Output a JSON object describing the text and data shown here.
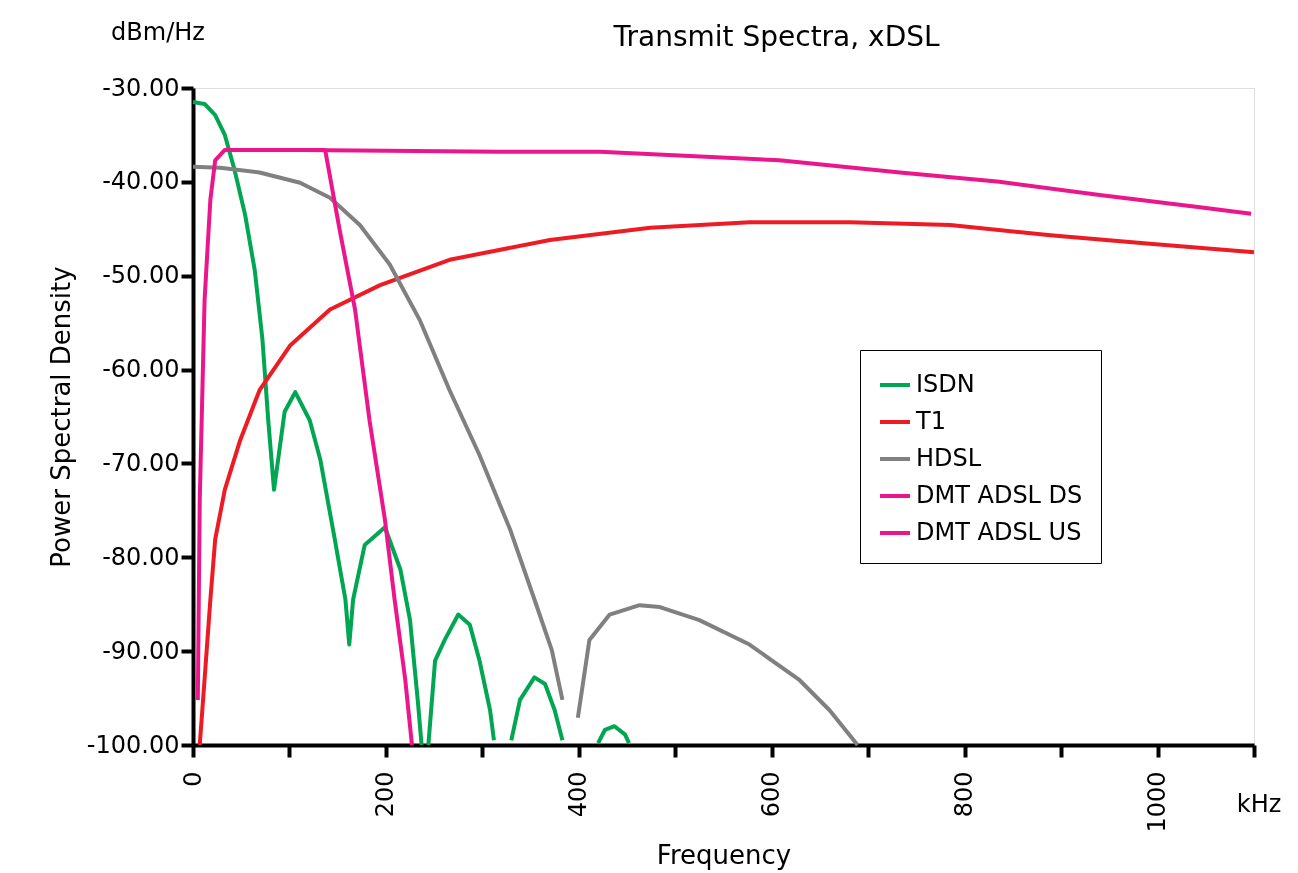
{
  "chart_data": {
    "type": "line",
    "title": "Transmit Spectra, xDSL",
    "xlabel": "Frequency",
    "ylabel": "Power Spectral Density",
    "annotations": [
      "dBm/Hz",
      "kHz"
    ],
    "xlim": [
      0,
      1100
    ],
    "ylim": [
      -100,
      -30
    ],
    "xticks": [
      0,
      {
        "value": 100,
        "label": null
      },
      200,
      {
        "value": 300,
        "label": null
      },
      400,
      {
        "value": 500,
        "label": null
      },
      600,
      {
        "value": 700,
        "label": null
      },
      800,
      {
        "value": 900,
        "label": null
      },
      1000,
      {
        "value": 1100,
        "label": null
      }
    ],
    "yticks": [
      {
        "value": -100,
        "label": "-100.00"
      },
      {
        "value": -90,
        "label": "-90.00"
      },
      {
        "value": -80,
        "label": "-80.00"
      },
      {
        "value": -70,
        "label": "-70.00"
      },
      {
        "value": -60,
        "label": "-60.00"
      },
      {
        "value": -50,
        "label": "-50.00"
      },
      {
        "value": -40,
        "label": "-40.00"
      },
      {
        "value": -30,
        "label": "-30.00"
      }
    ],
    "grid": false,
    "legend": "right",
    "marker": "none",
    "line_style": "solid",
    "series": [
      {
        "name": "ISDN",
        "color": "#00a651",
        "x": [
          0,
          12,
          23,
          33,
          43,
          54,
          64,
          72,
          78,
          84,
          95,
          106,
          121,
          132,
          147,
          158,
          162,
          166,
          178,
          199,
          215,
          225,
          233,
          237,
          240,
          244,
          251,
          261,
          275,
          287,
          297,
          308,
          312,
          320,
          330,
          339,
          354,
          365,
          375,
          383,
          400,
          420,
          427,
          437,
          448,
          452
        ],
        "values": [
          -31.5,
          -31.7,
          -32.9,
          -35,
          -38.7,
          -43.5,
          -49.4,
          -56.8,
          -65.4,
          -72.8,
          -64.5,
          -62.4,
          -65.4,
          -69.6,
          -78.1,
          -84.5,
          -89.3,
          -84.5,
          -78.7,
          -76.8,
          -81.3,
          -86.7,
          -95.2,
          -100,
          null,
          -100,
          -91,
          -88.8,
          -86.1,
          -87.2,
          -91,
          -96.3,
          -99.5,
          null,
          -99.5,
          -95.2,
          -92.8,
          -93.5,
          -96.3,
          -99.5,
          null,
          -99.8,
          -98.4,
          -98,
          -98.9,
          -99.8
        ]
      },
      {
        "name": "T1",
        "color": "#ed1c24",
        "x": [
          7,
          12,
          18,
          23,
          33,
          49,
          69,
          101,
          142,
          194,
          266,
          370,
          474,
          577,
          681,
          785,
          889,
          992,
          1100
        ],
        "values": [
          -100,
          -93,
          -84.5,
          -78.1,
          -72.8,
          -67.5,
          -62.2,
          -57.4,
          -53.6,
          -51,
          -48.3,
          -46.2,
          -44.9,
          -44.3,
          -44.3,
          -44.6,
          -45.7,
          -46.6,
          -47.5
        ]
      },
      {
        "name": "HDSL",
        "color": "#808080",
        "x": [
          0,
          28,
          69,
          111,
          142,
          173,
          204,
          235,
          266,
          297,
          329,
          354,
          372,
          383,
          390,
          399,
          411,
          432,
          463,
          484,
          525,
          577,
          629,
          660,
          689
        ],
        "values": [
          -38.4,
          -38.5,
          -39,
          -40.1,
          -41.7,
          -44.6,
          -48.8,
          -54.7,
          -62.2,
          -69.1,
          -77.1,
          -84.5,
          -89.9,
          -95.2,
          null,
          -97.1,
          -88.8,
          -86.1,
          -85.1,
          -85.3,
          -86.7,
          -89.3,
          -93.1,
          -96.3,
          -100
        ]
      },
      {
        "name": "DMT ADSL DS",
        "color": "#ec168c",
        "x": [
          5,
          7,
          12,
          18,
          23,
          33,
          111,
          318,
          422,
          608,
          733,
          836,
          940,
          1044,
          1097
        ],
        "values": [
          -95.2,
          -73.9,
          -52.6,
          -41.9,
          -37.7,
          -36.6,
          -36.6,
          -36.8,
          -36.8,
          -37.7,
          -39,
          -40,
          -41.4,
          -42.7,
          -43.4
        ]
      },
      {
        "name": "DMT ADSL US",
        "color": "#ec168c",
        "x": [
          33,
          137,
          152,
          168,
          183,
          199,
          209,
          220,
          227
        ],
        "values": [
          -36.6,
          -36.6,
          -45.1,
          -53.6,
          -65.4,
          -76,
          -84.5,
          -93,
          -100
        ]
      }
    ]
  }
}
